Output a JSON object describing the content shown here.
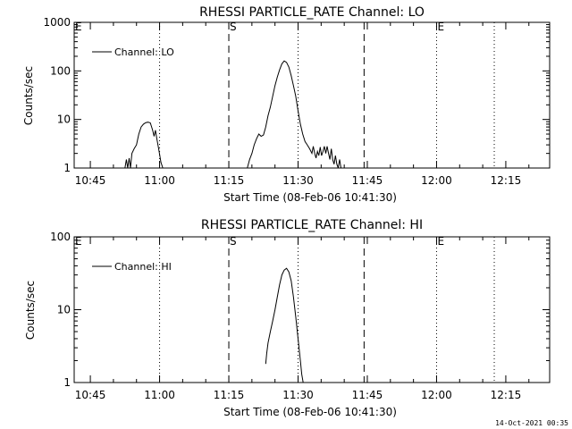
{
  "chart_data": [
    {
      "type": "line",
      "title": "RHESSI PARTICLE_RATE Channel: LO",
      "xlabel": "Start Time (08-Feb-06 10:41:30)",
      "ylabel": "Counts/sec",
      "y_scale": "log",
      "ylim": [
        1,
        1000
      ],
      "x_units": "minutes since 10:41:30",
      "xlim": [
        0,
        103
      ],
      "x_ticks": [
        {
          "label": "10:45",
          "value": 3.5
        },
        {
          "label": "11:00",
          "value": 18.5
        },
        {
          "label": "11:15",
          "value": 33.5
        },
        {
          "label": "11:30",
          "value": 48.5
        },
        {
          "label": "11:45",
          "value": 63.5
        },
        {
          "label": "12:00",
          "value": 78.5
        },
        {
          "label": "12:15",
          "value": 93.5
        }
      ],
      "y_ticks": [
        {
          "label": "1",
          "value": 1
        },
        {
          "label": "10",
          "value": 10
        },
        {
          "label": "100",
          "value": 100
        },
        {
          "label": "1000",
          "value": 1000
        }
      ],
      "legend": {
        "position": "top-left",
        "entries": [
          "Channel: LO"
        ]
      },
      "vlines": [
        {
          "value": 18.5,
          "style": "dotted"
        },
        {
          "value": 33.5,
          "style": "dashed",
          "label": "S"
        },
        {
          "value": 48.5,
          "style": "dotted"
        },
        {
          "value": 62.8,
          "style": "dashed"
        },
        {
          "value": 78.5,
          "style": "dotted",
          "label": "E"
        },
        {
          "value": 91.0,
          "style": "dotted"
        }
      ],
      "edge_marks": [
        {
          "label": "E",
          "side": "left"
        }
      ],
      "series": [
        {
          "name": "Channel: LO",
          "segments": [
            [
              [
                11.0,
                1
              ],
              [
                11.3,
                1.5
              ],
              [
                11.6,
                1
              ],
              [
                11.9,
                1.6
              ],
              [
                12.2,
                1
              ],
              [
                12.5,
                2
              ],
              [
                13.0,
                2.5
              ],
              [
                13.5,
                3
              ],
              [
                14.0,
                5
              ],
              [
                14.5,
                7
              ],
              [
                15.0,
                8
              ],
              [
                15.5,
                8.6
              ],
              [
                16.0,
                8.8
              ],
              [
                16.5,
                8.5
              ],
              [
                17.0,
                6
              ],
              [
                17.3,
                4.5
              ],
              [
                17.6,
                6
              ],
              [
                17.9,
                4
              ],
              [
                18.3,
                2.5
              ],
              [
                18.8,
                1.3
              ],
              [
                19.2,
                1
              ]
            ],
            [
              [
                37.5,
                1
              ],
              [
                38.0,
                1.5
              ],
              [
                38.5,
                2
              ],
              [
                39.0,
                3
              ],
              [
                39.5,
                4
              ],
              [
                40.0,
                5
              ],
              [
                40.5,
                4.5
              ],
              [
                41.0,
                4.8
              ],
              [
                41.5,
                7
              ],
              [
                42.0,
                12
              ],
              [
                42.5,
                18
              ],
              [
                43.0,
                30
              ],
              [
                43.5,
                50
              ],
              [
                44.0,
                75
              ],
              [
                44.5,
                105
              ],
              [
                45.0,
                140
              ],
              [
                45.5,
                160
              ],
              [
                46.0,
                150
              ],
              [
                46.5,
                120
              ],
              [
                47.0,
                80
              ],
              [
                47.5,
                50
              ],
              [
                48.0,
                30
              ],
              [
                48.5,
                15
              ],
              [
                49.0,
                8
              ],
              [
                49.5,
                5
              ],
              [
                50.0,
                3.5
              ],
              [
                50.5,
                3
              ],
              [
                51.0,
                2.5
              ],
              [
                51.5,
                2
              ],
              [
                51.8,
                2.8
              ],
              [
                52.1,
                2
              ],
              [
                52.4,
                1.6
              ],
              [
                52.7,
                2.2
              ],
              [
                53.0,
                1.8
              ],
              [
                53.3,
                2.7
              ],
              [
                53.6,
                1.8
              ],
              [
                53.9,
                2.2
              ],
              [
                54.2,
                2.8
              ],
              [
                54.5,
                2.0
              ],
              [
                54.8,
                2.8
              ],
              [
                55.1,
                2.0
              ],
              [
                55.4,
                1.5
              ],
              [
                55.7,
                2.5
              ],
              [
                56.0,
                1.5
              ],
              [
                56.3,
                1.2
              ],
              [
                56.6,
                1.8
              ],
              [
                56.9,
                1.2
              ],
              [
                57.2,
                1
              ],
              [
                57.5,
                1.5
              ],
              [
                57.8,
                1
              ]
            ]
          ]
        }
      ]
    },
    {
      "type": "line",
      "title": "RHESSI PARTICLE_RATE Channel: HI",
      "xlabel": "Start Time (08-Feb-06 10:41:30)",
      "ylabel": "Counts/sec",
      "y_scale": "log",
      "ylim": [
        1,
        100
      ],
      "x_units": "minutes since 10:41:30",
      "xlim": [
        0,
        103
      ],
      "x_ticks": [
        {
          "label": "10:45",
          "value": 3.5
        },
        {
          "label": "11:00",
          "value": 18.5
        },
        {
          "label": "11:15",
          "value": 33.5
        },
        {
          "label": "11:30",
          "value": 48.5
        },
        {
          "label": "11:45",
          "value": 63.5
        },
        {
          "label": "12:00",
          "value": 78.5
        },
        {
          "label": "12:15",
          "value": 93.5
        }
      ],
      "y_ticks": [
        {
          "label": "1",
          "value": 1
        },
        {
          "label": "10",
          "value": 10
        },
        {
          "label": "100",
          "value": 100
        }
      ],
      "legend": {
        "position": "top-left",
        "entries": [
          "Channel: HI"
        ]
      },
      "vlines": [
        {
          "value": 18.5,
          "style": "dotted"
        },
        {
          "value": 33.5,
          "style": "dashed",
          "label": "S"
        },
        {
          "value": 48.5,
          "style": "dotted"
        },
        {
          "value": 62.8,
          "style": "dashed"
        },
        {
          "value": 78.5,
          "style": "dotted",
          "label": "E"
        },
        {
          "value": 91.0,
          "style": "dotted"
        }
      ],
      "edge_marks": [
        {
          "label": "E",
          "side": "left"
        }
      ],
      "series": [
        {
          "name": "Channel: HI",
          "segments": [
            [
              [
                41.5,
                1.8
              ],
              [
                41.7,
                2.5
              ],
              [
                42.0,
                3.5
              ],
              [
                42.5,
                5
              ],
              [
                43.0,
                7
              ],
              [
                43.5,
                10
              ],
              [
                44.0,
                15
              ],
              [
                44.5,
                22
              ],
              [
                45.0,
                30
              ],
              [
                45.5,
                35
              ],
              [
                46.0,
                37
              ],
              [
                46.5,
                33
              ],
              [
                47.0,
                25
              ],
              [
                47.5,
                15
              ],
              [
                48.0,
                8
              ],
              [
                48.5,
                4
              ],
              [
                49.0,
                2
              ],
              [
                49.3,
                1.3
              ],
              [
                49.6,
                1
              ]
            ]
          ]
        }
      ]
    }
  ],
  "footer": {
    "timestamp": "14-Oct-2021 00:35"
  }
}
